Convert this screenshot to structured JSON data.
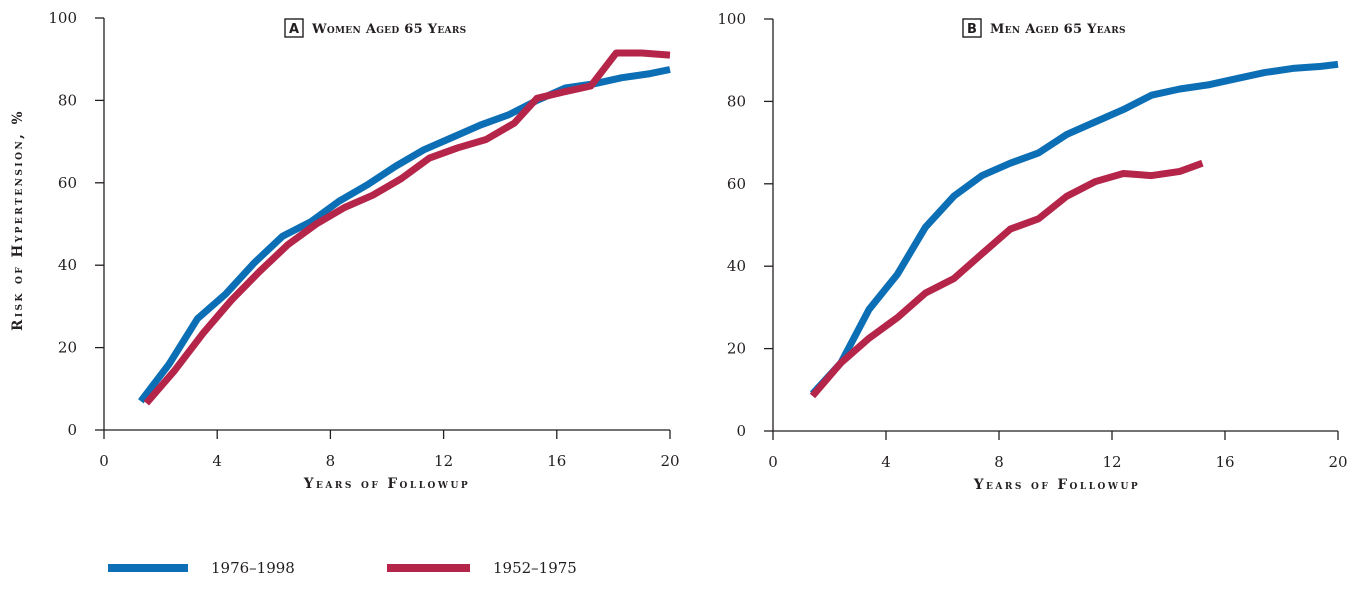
{
  "chart_data": [
    {
      "type": "line",
      "panel_letter": "A",
      "title": "Women Aged 65 Years",
      "xlabel": "Years of Followup",
      "ylabel": "Risk of Hypertension, %",
      "xlim": [
        0,
        20
      ],
      "ylim": [
        0,
        100
      ],
      "x_ticks": [
        0,
        4,
        8,
        12,
        16,
        20
      ],
      "y_ticks": [
        0,
        20,
        40,
        60,
        80,
        100
      ],
      "grid": false,
      "series": [
        {
          "name": "1976–1998",
          "color": "#0c6fb5",
          "x": [
            1.3,
            2.3,
            3.3,
            4.3,
            5.3,
            6.3,
            7.3,
            8.3,
            9.3,
            10.3,
            11.3,
            12.3,
            13.3,
            14.3,
            15.3,
            16.3,
            17.3,
            18.3,
            19.3,
            20
          ],
          "y": [
            7,
            16,
            27,
            33,
            40.5,
            47,
            50.5,
            55.5,
            59.5,
            64,
            68,
            71,
            74,
            76.5,
            80,
            83,
            84,
            85.5,
            86.5,
            87.5
          ]
        },
        {
          "name": "1952–1975",
          "color": "#b5254a",
          "x": [
            1.5,
            2.5,
            3.5,
            4.5,
            5.5,
            6.5,
            7.5,
            8.5,
            9.5,
            10.5,
            11.5,
            12.5,
            13.5,
            14.5,
            15.3,
            16.2,
            17.2,
            18.1,
            19.0,
            20
          ],
          "y": [
            6.5,
            14.5,
            23.5,
            31.5,
            38.5,
            45,
            50,
            54,
            57,
            61,
            66,
            68.5,
            70.5,
            74.5,
            80.5,
            82,
            83.5,
            91.5,
            91.5,
            91
          ]
        }
      ]
    },
    {
      "type": "line",
      "panel_letter": "B",
      "title": "Men Aged 65 Years",
      "xlabel": "Years of Followup",
      "ylabel": "",
      "xlim": [
        0,
        20
      ],
      "ylim": [
        0,
        100
      ],
      "x_ticks": [
        0,
        4,
        8,
        12,
        16,
        20
      ],
      "y_ticks": [
        0,
        20,
        40,
        60,
        80,
        100
      ],
      "grid": false,
      "series": [
        {
          "name": "1976–1998",
          "color": "#0c6fb5",
          "x": [
            1.4,
            2.4,
            3.4,
            4.4,
            5.4,
            6.4,
            7.4,
            8.4,
            9.4,
            10.4,
            11.4,
            12.4,
            13.4,
            14.4,
            15.4,
            16.4,
            17.4,
            18.4,
            19.4,
            20
          ],
          "y": [
            9,
            16.5,
            29.5,
            38,
            49.5,
            57,
            62,
            65,
            67.5,
            72,
            75,
            78,
            81.5,
            83,
            84,
            85.5,
            87,
            88,
            88.5,
            89
          ]
        },
        {
          "name": "1952–1975",
          "color": "#b5254a",
          "x": [
            1.4,
            2.4,
            3.4,
            4.4,
            5.4,
            6.4,
            7.4,
            8.4,
            9.4,
            10.4,
            11.4,
            12.4,
            13.4,
            14.4,
            15.2
          ],
          "y": [
            8.5,
            16.5,
            22.5,
            27.5,
            33.5,
            37,
            43,
            49,
            51.5,
            57,
            60.5,
            62.5,
            62,
            63,
            65
          ]
        }
      ]
    }
  ],
  "legend": [
    {
      "label": "1976–1998",
      "color": "#0c6fb5"
    },
    {
      "label": "1952–1975",
      "color": "#b5254a"
    }
  ],
  "legend_placement": "bottom-left"
}
